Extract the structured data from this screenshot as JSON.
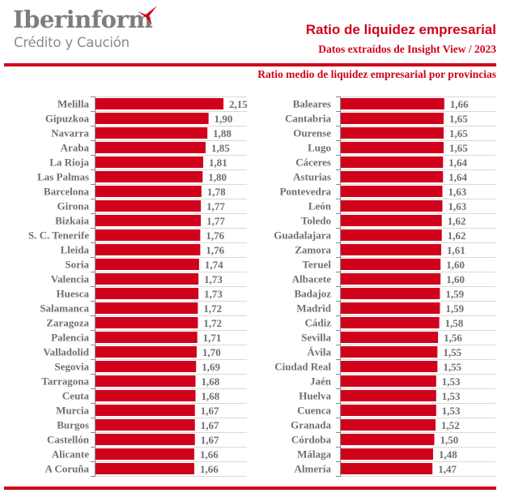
{
  "header": {
    "logo_name": "Iberinform",
    "logo_subname": "Crédito y Caución",
    "title": "Ratio de liquidez empresarial",
    "source": "Datos extraídos de Insight View / 2023",
    "subtitle": "Ratio medio de liquidez empresarial por provincias"
  },
  "colors": {
    "bar": "#d0021b",
    "accent": "#d0021b",
    "text": "#6f6f6f",
    "grid": "#d9d9d9"
  },
  "chart_data": [
    {
      "type": "bar",
      "orientation": "horizontal",
      "title": "Ratio medio de liquidez empresarial por provincias",
      "xlabel": "",
      "ylabel": "",
      "xlim": [
        0,
        2.15
      ],
      "grid": true,
      "categories": [
        "Melilla",
        "Gipuzkoa",
        "Navarra",
        "Araba",
        "La Rioja",
        "Las Palmas",
        "Barcelona",
        "Girona",
        "Bizkaia",
        "S. C. Tenerife",
        "Lleida",
        "Soria",
        "Valencia",
        "Huesca",
        "Salamanca",
        "Zaragoza",
        "Palencia",
        "Valladolid",
        "Segovia",
        "Tarragona",
        "Ceuta",
        "Murcia",
        "Burgos",
        "Castellón",
        "Alicante",
        "A Coruña"
      ],
      "values": [
        2.15,
        1.9,
        1.88,
        1.85,
        1.81,
        1.8,
        1.78,
        1.77,
        1.77,
        1.76,
        1.76,
        1.74,
        1.73,
        1.73,
        1.72,
        1.72,
        1.71,
        1.7,
        1.69,
        1.68,
        1.68,
        1.67,
        1.67,
        1.67,
        1.66,
        1.66
      ],
      "labels": [
        "2,15",
        "1,90",
        "1,88",
        "1,85",
        "1,81",
        "1,80",
        "1,78",
        "1,77",
        "1,77",
        "1,76",
        "1,76",
        "1,74",
        "1,73",
        "1,73",
        "1,72",
        "1,72",
        "1,71",
        "1,70",
        "1,69",
        "1,68",
        "1,68",
        "1,67",
        "1,67",
        "1,67",
        "1,66",
        "1,66"
      ]
    },
    {
      "type": "bar",
      "orientation": "horizontal",
      "title": "",
      "xlabel": "",
      "ylabel": "",
      "xlim": [
        0,
        2.15
      ],
      "grid": true,
      "categories": [
        "Baleares",
        "Cantabria",
        "Ourense",
        "Lugo",
        "Cáceres",
        "Asturias",
        "Pontevedra",
        "León",
        "Toledo",
        "Guadalajara",
        "Zamora",
        "Teruel",
        "Albacete",
        "Badajoz",
        "Madrid",
        "Cádiz",
        "Sevilla",
        "Ávila",
        "Ciudad Real",
        "Jaén",
        "Huelva",
        "Cuenca",
        "Granada",
        "Córdoba",
        "Málaga",
        "Almería"
      ],
      "values": [
        1.66,
        1.65,
        1.65,
        1.65,
        1.64,
        1.64,
        1.63,
        1.63,
        1.62,
        1.62,
        1.61,
        1.6,
        1.6,
        1.59,
        1.59,
        1.58,
        1.56,
        1.55,
        1.55,
        1.53,
        1.53,
        1.53,
        1.52,
        1.5,
        1.48,
        1.47
      ],
      "labels": [
        "1,66",
        "1,65",
        "1,65",
        "1,65",
        "1,64",
        "1,64",
        "1,63",
        "1,63",
        "1,62",
        "1,62",
        "1,61",
        "1,60",
        "1,60",
        "1,59",
        "1,59",
        "1,58",
        "1,56",
        "1,55",
        "1,55",
        "1,53",
        "1,53",
        "1,53",
        "1,52",
        "1,50",
        "1,48",
        "1,47"
      ]
    }
  ]
}
